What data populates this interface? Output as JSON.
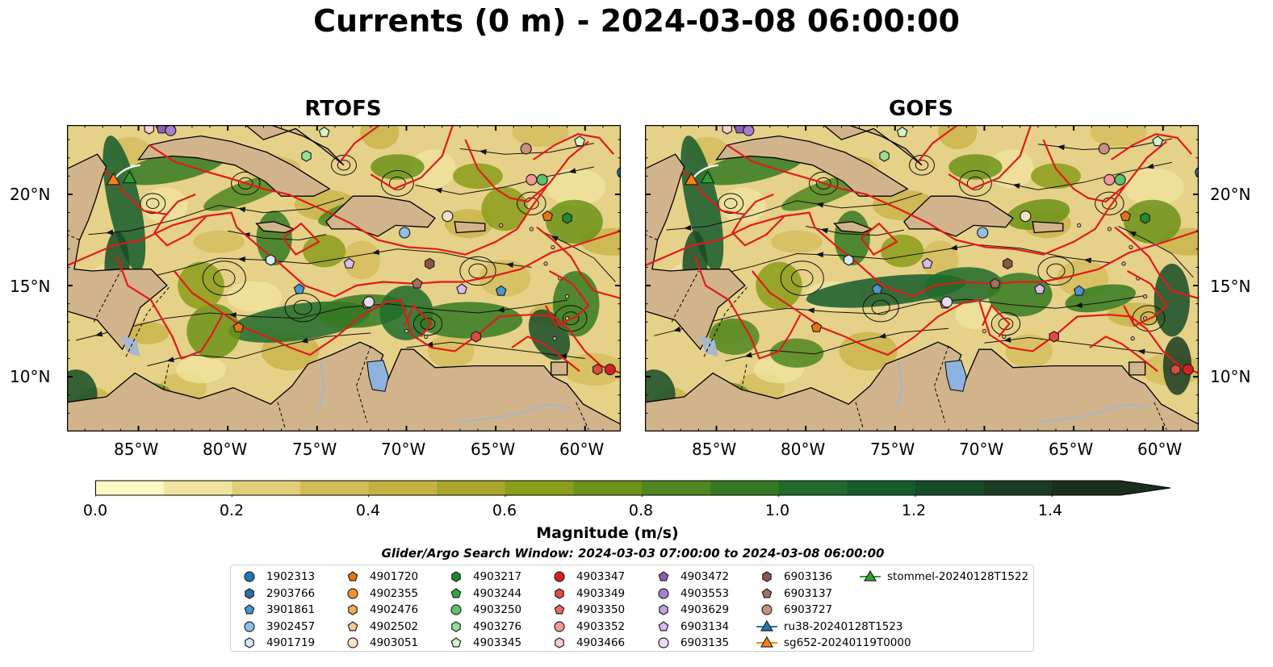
{
  "title": "Currents (0 m) - 2024-03-08 06:00:00",
  "panels": [
    {
      "title": "RTOFS"
    },
    {
      "title": "GOFS"
    }
  ],
  "axes": {
    "lat_labels": [
      "20°N",
      "15°N",
      "10°N"
    ],
    "lon_labels": [
      "85°W",
      "80°W",
      "75°W",
      "70°W",
      "65°W",
      "60°W"
    ]
  },
  "colorbar": {
    "label": "Magnitude (m/s)",
    "ticks": [
      "0.0",
      "0.2",
      "0.4",
      "0.6",
      "0.8",
      "1.0",
      "1.2",
      "1.4"
    ],
    "range": [
      0.0,
      1.5
    ],
    "colors": [
      "#fdf9c4",
      "#f0e4a0",
      "#e0cf78",
      "#d3bb58",
      "#c6b044",
      "#a8a62c",
      "#8a9e1a",
      "#6c9318",
      "#4e8620",
      "#357a22",
      "#1f6b2c",
      "#145c2c",
      "#164c28",
      "#1a3c22",
      "#1c2e1c"
    ]
  },
  "search_window": "Glider/Argo Search Window: 2024-03-03 07:00:00 to 2024-03-08 06:00:00",
  "legend": [
    {
      "label": "1902313",
      "marker": "circle",
      "color": "#1f77b4"
    },
    {
      "label": "2903766",
      "marker": "hexagon",
      "color": "#2f6fa8"
    },
    {
      "label": "3901861",
      "marker": "pentagon",
      "color": "#4c95cf"
    },
    {
      "label": "3902457",
      "marker": "circle",
      "color": "#8fbfe8"
    },
    {
      "label": "4901719",
      "marker": "hexagon",
      "color": "#d8eaf9"
    },
    {
      "label": "4901720",
      "marker": "pentagon",
      "color": "#e6760c"
    },
    {
      "label": "4902355",
      "marker": "circle",
      "color": "#f4922e"
    },
    {
      "label": "4902476",
      "marker": "hexagon",
      "color": "#f8a95a"
    },
    {
      "label": "4902502",
      "marker": "pentagon",
      "color": "#fbc898"
    },
    {
      "label": "4903051",
      "marker": "circle",
      "color": "#fde3c6"
    },
    {
      "label": "4903217",
      "marker": "hexagon",
      "color": "#1d8a2e"
    },
    {
      "label": "4903244",
      "marker": "pentagon",
      "color": "#35a24a"
    },
    {
      "label": "4903250",
      "marker": "circle",
      "color": "#5cc36a"
    },
    {
      "label": "4903276",
      "marker": "hexagon",
      "color": "#98de95"
    },
    {
      "label": "4903345",
      "marker": "pentagon",
      "color": "#d3f5cc"
    },
    {
      "label": "4903347",
      "marker": "circle",
      "color": "#d62022"
    },
    {
      "label": "4903349",
      "marker": "hexagon",
      "color": "#df4a40"
    },
    {
      "label": "4903350",
      "marker": "pentagon",
      "color": "#e8676a"
    },
    {
      "label": "4903352",
      "marker": "circle",
      "color": "#f29898"
    },
    {
      "label": "4903466",
      "marker": "hexagon",
      "color": "#fbcfcc"
    },
    {
      "label": "4903472",
      "marker": "pentagon",
      "color": "#8f5fb8"
    },
    {
      "label": "4903553",
      "marker": "circle",
      "color": "#a77fcf"
    },
    {
      "label": "4903629",
      "marker": "hexagon",
      "color": "#c2a2e2"
    },
    {
      "label": "6903134",
      "marker": "pentagon",
      "color": "#d7bdf1"
    },
    {
      "label": "6903135",
      "marker": "circle",
      "color": "#ead9f8"
    },
    {
      "label": "6903136",
      "marker": "hexagon",
      "color": "#8a564a"
    },
    {
      "label": "6903137",
      "marker": "pentagon",
      "color": "#a56e62"
    },
    {
      "label": "6903727",
      "marker": "circle",
      "color": "#c98f82"
    },
    {
      "label": "ru38-20240128T1523",
      "marker": "line-triangle",
      "color": "#1f77b4"
    },
    {
      "label": "sg652-20240119T0000",
      "marker": "line-triangle",
      "color": "#ff7f0e"
    },
    {
      "label": "stommel-20240128T1522",
      "marker": "line-triangle",
      "color": "#2ca02c"
    }
  ]
}
